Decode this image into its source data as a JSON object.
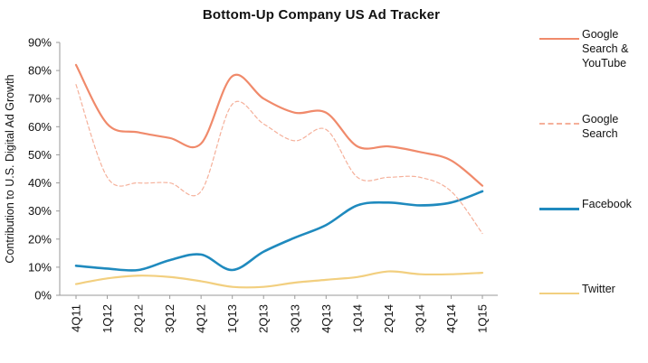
{
  "chart_data": {
    "type": "line",
    "title": "Bottom-Up Company US Ad Tracker",
    "ylabel": "Contribution to U.S. Digital Ad Growth",
    "xlabel": "",
    "categories": [
      "4Q11",
      "1Q12",
      "2Q12",
      "3Q12",
      "4Q12",
      "1Q13",
      "2Q13",
      "3Q13",
      "4Q13",
      "1Q14",
      "2Q14",
      "3Q14",
      "4Q14",
      "1Q15"
    ],
    "y_ticks": [
      "0%",
      "10%",
      "20%",
      "30%",
      "40%",
      "50%",
      "60%",
      "70%",
      "80%",
      "90%"
    ],
    "ylim": [
      0,
      90
    ],
    "grid": false,
    "legend_position": "right",
    "series": [
      {
        "name": "Google Search & YouTube",
        "color": "#F08A6B",
        "style": "solid",
        "values": [
          82,
          61,
          58,
          56,
          54,
          78,
          70,
          65,
          65,
          53,
          53,
          51,
          48,
          39
        ]
      },
      {
        "name": "Google Search",
        "color": "#F5B09A",
        "style": "dashed",
        "values": [
          75,
          42,
          40,
          40,
          37,
          68,
          61,
          55,
          59,
          42,
          42,
          42,
          37,
          22
        ]
      },
      {
        "name": "Facebook",
        "color": "#1F8ABE",
        "style": "solid",
        "values": [
          10.5,
          9.5,
          9,
          12.5,
          14.5,
          9,
          15.5,
          20.5,
          25,
          32,
          33,
          32,
          33,
          37
        ]
      },
      {
        "name": "Twitter",
        "color": "#F2CF7F",
        "style": "solid",
        "values": [
          4,
          6,
          7,
          6.5,
          5,
          3,
          3,
          4.5,
          5.5,
          6.5,
          8.5,
          7.5,
          7.5,
          8
        ]
      }
    ]
  },
  "legend": {
    "items": [
      {
        "label": "Google Search & YouTube",
        "color": "#F08A6B"
      },
      {
        "label": "Google Search",
        "color": "#F5B09A"
      },
      {
        "label": "Facebook",
        "color": "#1F8ABE"
      },
      {
        "label": "Twitter",
        "color": "#F2CF7F"
      }
    ]
  }
}
